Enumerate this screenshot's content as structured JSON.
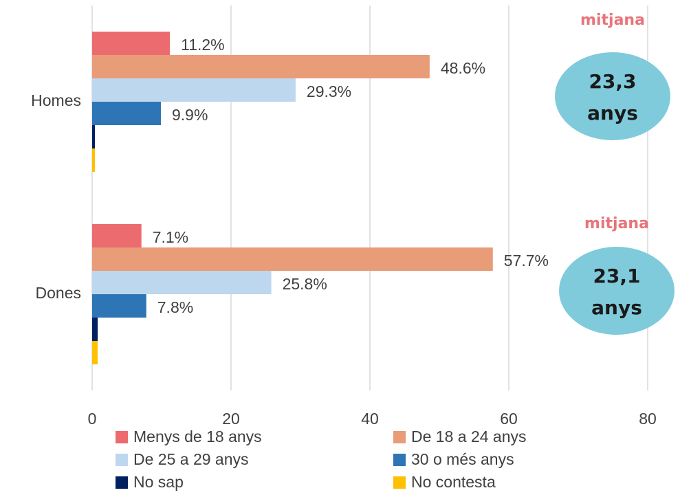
{
  "chart_data": {
    "type": "hbar",
    "categories": [
      "Homes",
      "Dones"
    ],
    "series": [
      {
        "name": "Menys de 18 anys",
        "color": "#ec6b6e",
        "values": [
          11.2,
          7.1
        ],
        "value_labels": [
          "11.2%",
          "7.1%"
        ]
      },
      {
        "name": "De 18 a 24 anys",
        "color": "#e99c78",
        "values": [
          48.6,
          57.7
        ],
        "value_labels": [
          "48.6%",
          "57.7%"
        ]
      },
      {
        "name": "De 25 a 29 anys",
        "color": "#bdd7ee",
        "values": [
          29.3,
          25.8
        ],
        "value_labels": [
          "29.3%",
          "25.8%"
        ]
      },
      {
        "name": "30 o més anys",
        "color": "#2e75b6",
        "values": [
          9.9,
          7.8
        ],
        "value_labels": [
          "9.9%",
          "7.8%"
        ]
      },
      {
        "name": "No sap",
        "color": "#002060",
        "values": [
          0.4,
          0.8
        ]
      },
      {
        "name": "No contesta",
        "color": "#ffc000",
        "values": [
          0.4,
          0.8
        ]
      }
    ],
    "xlim": [
      0,
      80
    ],
    "xticks": [
      0,
      20,
      40,
      60,
      80
    ],
    "grid": true,
    "legend": "bottom",
    "annotations": [
      {
        "title": "mitjana",
        "lines": [
          "23,3",
          "anys"
        ]
      },
      {
        "title": "mitjana",
        "lines": [
          "23,1",
          "anys"
        ]
      }
    ]
  }
}
